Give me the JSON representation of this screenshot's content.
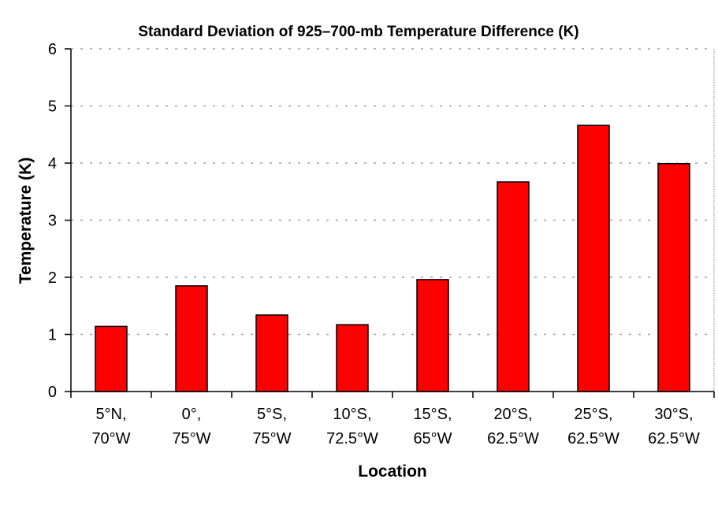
{
  "chart_data": {
    "type": "bar",
    "title": "Standard Deviation of 925–700-mb Temperature Difference (K)",
    "xlabel": "Location",
    "ylabel": "Temperature (K)",
    "categories": [
      [
        "5°N,",
        "70°W"
      ],
      [
        "0°,",
        "75°W"
      ],
      [
        "5°S,",
        "75°W"
      ],
      [
        "10°S,",
        "72.5°W"
      ],
      [
        "15°S,",
        "65°W"
      ],
      [
        "20°S,",
        "62.5°W"
      ],
      [
        "25°S,",
        "62.5°W"
      ],
      [
        "30°S,",
        "62.5°W"
      ]
    ],
    "values": [
      1.14,
      1.85,
      1.34,
      1.17,
      1.96,
      3.67,
      4.66,
      3.99
    ],
    "ylim": [
      0,
      6
    ],
    "yticks": [
      "0",
      "1",
      "2",
      "3",
      "4",
      "5",
      "6"
    ],
    "grid": true,
    "bar_color": "#ff0000",
    "legend": "none"
  }
}
